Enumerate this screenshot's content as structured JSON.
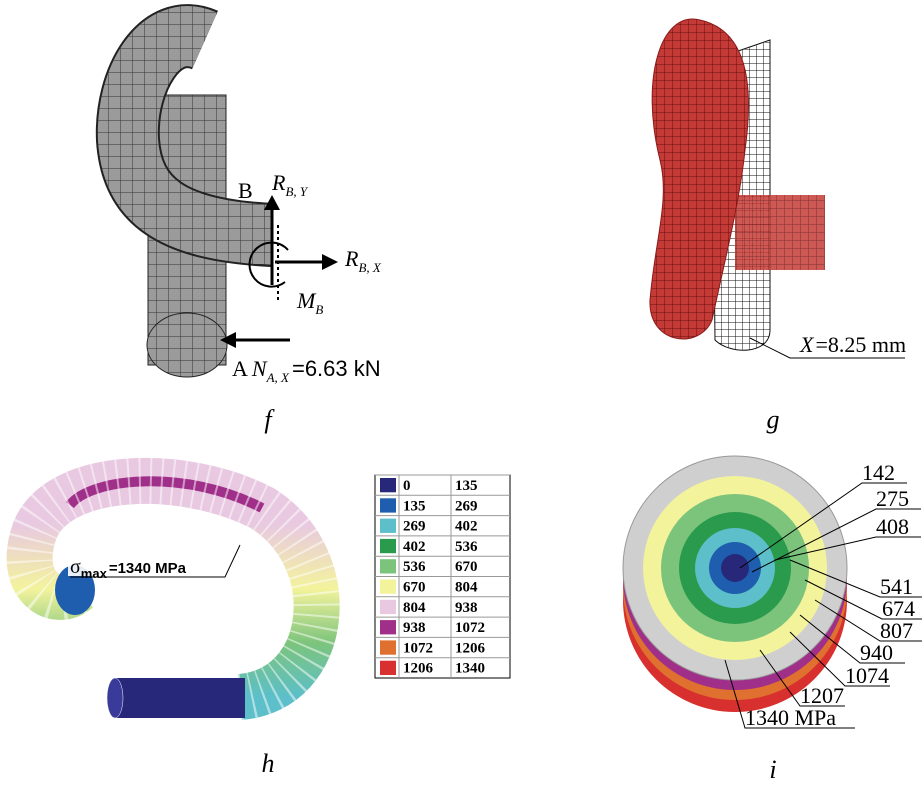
{
  "panels": {
    "f": {
      "caption": "f",
      "point_b": "B",
      "point_a": "A",
      "r_by": {
        "symbol": "R",
        "subscript": "B, Y"
      },
      "r_bx": {
        "symbol": "R",
        "subscript": "B, X"
      },
      "m_b": {
        "symbol": "M",
        "subscript": "B"
      },
      "n_ax": {
        "symbol": "N",
        "subscript": "A, X",
        "value": "=6.63 kN"
      }
    },
    "g": {
      "caption": "g",
      "displacement": {
        "symbol": "X",
        "value": "=8.25 mm"
      }
    },
    "h": {
      "caption": "h",
      "stress": {
        "symbol": "σ",
        "subscript": "max",
        "value": "=1340 MPa"
      },
      "legend": {
        "rows": [
          [
            "0",
            "135"
          ],
          [
            "135",
            "269"
          ],
          [
            "269",
            "402"
          ],
          [
            "402",
            "536"
          ],
          [
            "536",
            "670"
          ],
          [
            "670",
            "804"
          ],
          [
            "804",
            "938"
          ],
          [
            "938",
            "1072"
          ],
          [
            "1072",
            "1206"
          ],
          [
            "1206",
            "1340"
          ]
        ],
        "colors": [
          "#27287a",
          "#1f5eae",
          "#5cbfc9",
          "#2a9a4c",
          "#7cc47c",
          "#f3f39c",
          "#e8c9e1",
          "#a02f8a",
          "#e0702f",
          "#d8302f"
        ]
      }
    },
    "i": {
      "caption": "i",
      "labels": [
        "142",
        "275",
        "408",
        "541",
        "674",
        "807",
        "940",
        "1074",
        "1207",
        "1340 MPa"
      ]
    }
  }
}
